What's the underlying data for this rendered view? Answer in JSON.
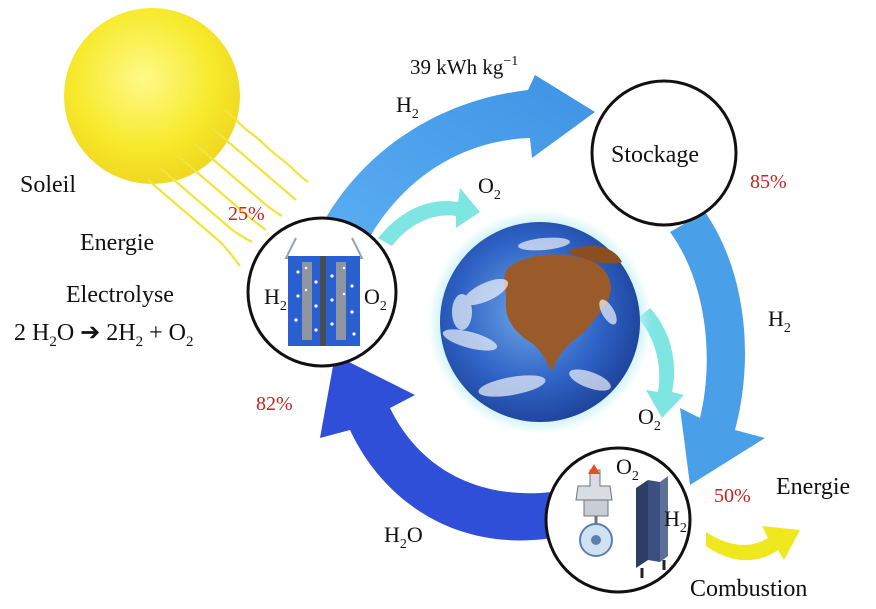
{
  "labels": {
    "soleil": "Soleil",
    "energie_left": "Energie",
    "electrolyse": "Electrolyse",
    "equation": {
      "a": "2 H",
      "a_sub": "2",
      "b": "O ➔ 2H",
      "b_sub": "2",
      "c": " + O",
      "c_sub": "2"
    },
    "energy_density": {
      "value": "39 kWh kg",
      "exp": "−1"
    },
    "h2": "H",
    "o2": "O",
    "sub2": "2",
    "stockage": "Stockage",
    "h2o_prefix": "H",
    "h2o_suffix": "O",
    "energie_right": "Energie",
    "combustion": "Combustion"
  },
  "efficiencies": {
    "solar": "25%",
    "storage": "85%",
    "electrolysis": "82%",
    "combustion": "50%"
  },
  "colors": {
    "sun": "#f7ea2c",
    "light_rays": "#f2e43a",
    "big_arrow": "#4aa0e8",
    "return_arrow": "#2f4fd8",
    "oxygen_arrow": "#7fe5e2",
    "energy_arrow": "#f0e81e",
    "efficiency_text": "#c8231e",
    "electrolyzer_tank": "#2a5fcf"
  }
}
